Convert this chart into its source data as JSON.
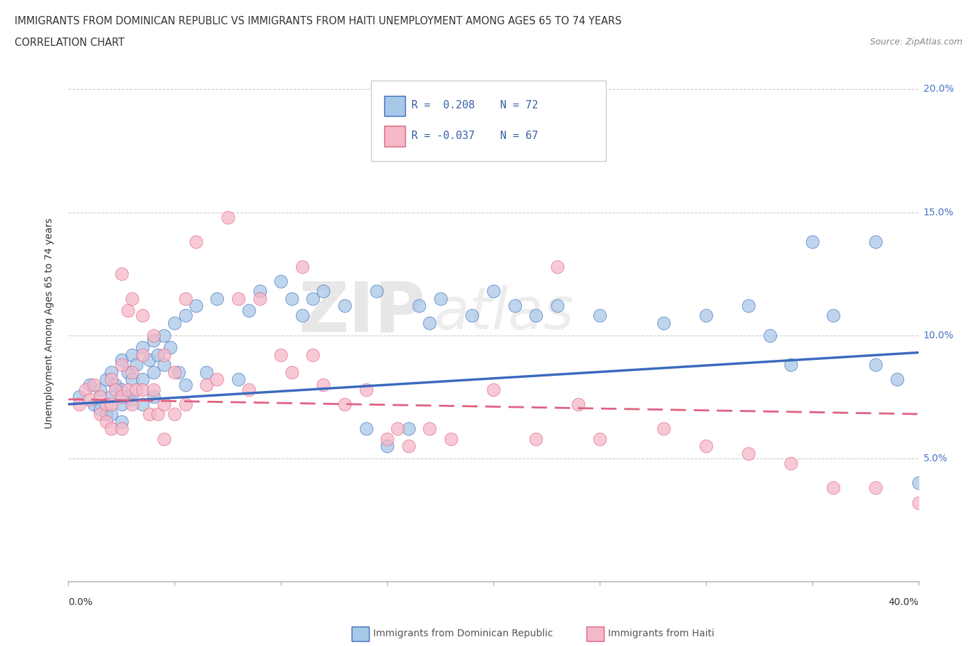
{
  "title_line1": "IMMIGRANTS FROM DOMINICAN REPUBLIC VS IMMIGRANTS FROM HAITI UNEMPLOYMENT AMONG AGES 65 TO 74 YEARS",
  "title_line2": "CORRELATION CHART",
  "source_text": "Source: ZipAtlas.com",
  "ylabel": "Unemployment Among Ages 65 to 74 years",
  "xmin": 0.0,
  "xmax": 0.4,
  "ymin": 0.0,
  "ymax": 0.21,
  "yticks": [
    0.05,
    0.1,
    0.15,
    0.2
  ],
  "ytick_labels": [
    "5.0%",
    "10.0%",
    "15.0%",
    "20.0%"
  ],
  "xticks": [
    0.0,
    0.05,
    0.1,
    0.15,
    0.2,
    0.25,
    0.3,
    0.35,
    0.4
  ],
  "color_blue": "#a8c8e8",
  "color_pink": "#f4b8c8",
  "color_blue_line": "#3a6abf",
  "color_pink_line": "#e06080",
  "watermark_zip": "ZIP",
  "watermark_atlas": "atlas",
  "blue_R": 0.208,
  "pink_R": -0.037,
  "blue_n": 72,
  "pink_n": 67,
  "blue_line_x": [
    0.0,
    0.4
  ],
  "blue_line_y": [
    0.072,
    0.093
  ],
  "pink_line_x": [
    0.0,
    0.4
  ],
  "pink_line_y": [
    0.074,
    0.068
  ],
  "blue_scatter": [
    [
      0.005,
      0.075
    ],
    [
      0.01,
      0.08
    ],
    [
      0.012,
      0.072
    ],
    [
      0.015,
      0.078
    ],
    [
      0.015,
      0.07
    ],
    [
      0.018,
      0.082
    ],
    [
      0.018,
      0.068
    ],
    [
      0.02,
      0.085
    ],
    [
      0.02,
      0.075
    ],
    [
      0.02,
      0.068
    ],
    [
      0.022,
      0.08
    ],
    [
      0.025,
      0.09
    ],
    [
      0.025,
      0.078
    ],
    [
      0.025,
      0.072
    ],
    [
      0.025,
      0.065
    ],
    [
      0.028,
      0.085
    ],
    [
      0.028,
      0.075
    ],
    [
      0.03,
      0.092
    ],
    [
      0.03,
      0.082
    ],
    [
      0.03,
      0.074
    ],
    [
      0.032,
      0.088
    ],
    [
      0.035,
      0.095
    ],
    [
      0.035,
      0.082
    ],
    [
      0.035,
      0.072
    ],
    [
      0.038,
      0.09
    ],
    [
      0.04,
      0.098
    ],
    [
      0.04,
      0.085
    ],
    [
      0.04,
      0.075
    ],
    [
      0.042,
      0.092
    ],
    [
      0.045,
      0.1
    ],
    [
      0.045,
      0.088
    ],
    [
      0.048,
      0.095
    ],
    [
      0.05,
      0.105
    ],
    [
      0.052,
      0.085
    ],
    [
      0.055,
      0.108
    ],
    [
      0.055,
      0.08
    ],
    [
      0.06,
      0.112
    ],
    [
      0.065,
      0.085
    ],
    [
      0.07,
      0.115
    ],
    [
      0.08,
      0.082
    ],
    [
      0.085,
      0.11
    ],
    [
      0.09,
      0.118
    ],
    [
      0.1,
      0.122
    ],
    [
      0.105,
      0.115
    ],
    [
      0.11,
      0.108
    ],
    [
      0.115,
      0.115
    ],
    [
      0.12,
      0.118
    ],
    [
      0.13,
      0.112
    ],
    [
      0.14,
      0.062
    ],
    [
      0.145,
      0.118
    ],
    [
      0.15,
      0.055
    ],
    [
      0.16,
      0.062
    ],
    [
      0.165,
      0.112
    ],
    [
      0.17,
      0.105
    ],
    [
      0.175,
      0.115
    ],
    [
      0.19,
      0.108
    ],
    [
      0.2,
      0.118
    ],
    [
      0.21,
      0.112
    ],
    [
      0.22,
      0.108
    ],
    [
      0.23,
      0.112
    ],
    [
      0.25,
      0.108
    ],
    [
      0.28,
      0.105
    ],
    [
      0.3,
      0.108
    ],
    [
      0.32,
      0.112
    ],
    [
      0.33,
      0.1
    ],
    [
      0.34,
      0.088
    ],
    [
      0.35,
      0.138
    ],
    [
      0.36,
      0.108
    ],
    [
      0.38,
      0.138
    ],
    [
      0.38,
      0.088
    ],
    [
      0.39,
      0.082
    ],
    [
      0.4,
      0.04
    ]
  ],
  "pink_scatter": [
    [
      0.005,
      0.072
    ],
    [
      0.008,
      0.078
    ],
    [
      0.01,
      0.074
    ],
    [
      0.012,
      0.08
    ],
    [
      0.015,
      0.075
    ],
    [
      0.015,
      0.068
    ],
    [
      0.018,
      0.072
    ],
    [
      0.018,
      0.065
    ],
    [
      0.02,
      0.082
    ],
    [
      0.02,
      0.072
    ],
    [
      0.02,
      0.062
    ],
    [
      0.022,
      0.078
    ],
    [
      0.025,
      0.125
    ],
    [
      0.025,
      0.088
    ],
    [
      0.025,
      0.075
    ],
    [
      0.025,
      0.062
    ],
    [
      0.028,
      0.11
    ],
    [
      0.028,
      0.078
    ],
    [
      0.03,
      0.115
    ],
    [
      0.03,
      0.085
    ],
    [
      0.03,
      0.072
    ],
    [
      0.032,
      0.078
    ],
    [
      0.035,
      0.108
    ],
    [
      0.035,
      0.092
    ],
    [
      0.035,
      0.078
    ],
    [
      0.038,
      0.068
    ],
    [
      0.04,
      0.1
    ],
    [
      0.04,
      0.078
    ],
    [
      0.042,
      0.068
    ],
    [
      0.045,
      0.092
    ],
    [
      0.045,
      0.072
    ],
    [
      0.045,
      0.058
    ],
    [
      0.05,
      0.085
    ],
    [
      0.05,
      0.068
    ],
    [
      0.055,
      0.115
    ],
    [
      0.055,
      0.072
    ],
    [
      0.06,
      0.138
    ],
    [
      0.065,
      0.08
    ],
    [
      0.07,
      0.082
    ],
    [
      0.075,
      0.148
    ],
    [
      0.08,
      0.115
    ],
    [
      0.085,
      0.078
    ],
    [
      0.09,
      0.115
    ],
    [
      0.1,
      0.092
    ],
    [
      0.105,
      0.085
    ],
    [
      0.11,
      0.128
    ],
    [
      0.115,
      0.092
    ],
    [
      0.12,
      0.08
    ],
    [
      0.13,
      0.072
    ],
    [
      0.14,
      0.078
    ],
    [
      0.15,
      0.058
    ],
    [
      0.155,
      0.062
    ],
    [
      0.16,
      0.055
    ],
    [
      0.17,
      0.062
    ],
    [
      0.18,
      0.058
    ],
    [
      0.2,
      0.078
    ],
    [
      0.22,
      0.058
    ],
    [
      0.23,
      0.128
    ],
    [
      0.24,
      0.072
    ],
    [
      0.25,
      0.058
    ],
    [
      0.28,
      0.062
    ],
    [
      0.3,
      0.055
    ],
    [
      0.32,
      0.052
    ],
    [
      0.34,
      0.048
    ],
    [
      0.36,
      0.038
    ],
    [
      0.38,
      0.038
    ],
    [
      0.4,
      0.032
    ]
  ]
}
